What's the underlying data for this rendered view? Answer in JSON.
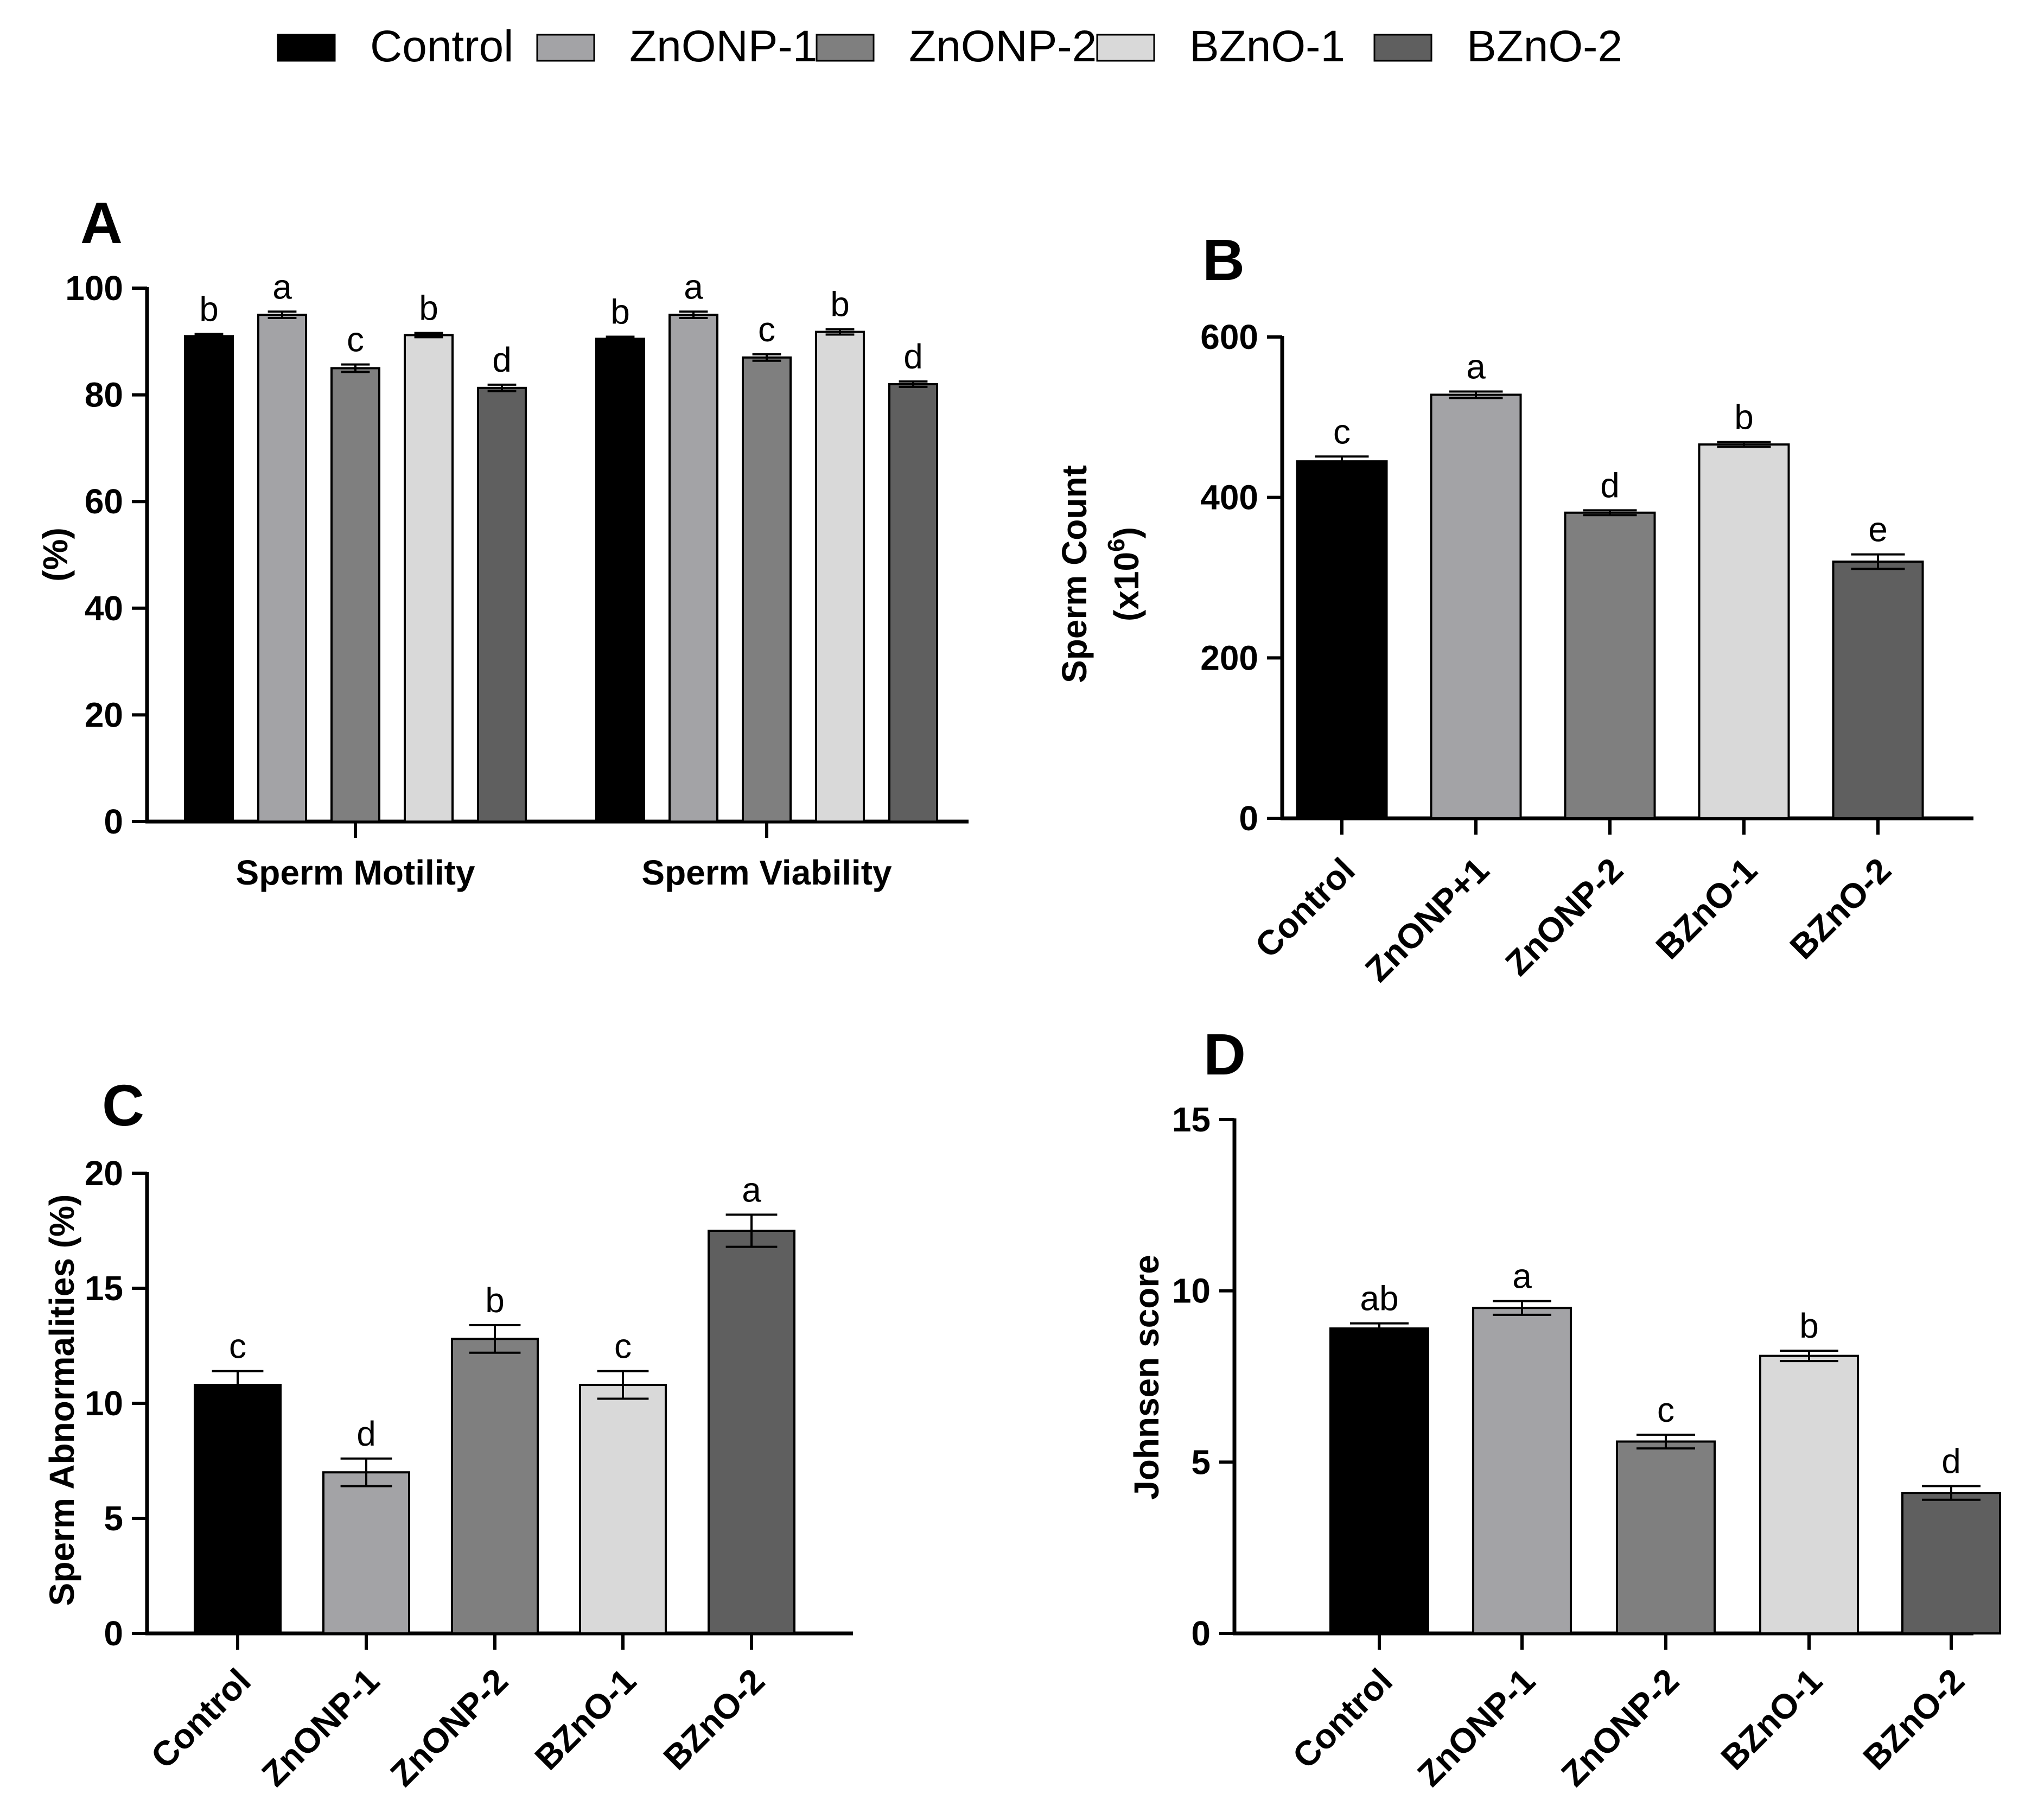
{
  "legend": {
    "items": [
      {
        "label": "Control",
        "color": "#000000"
      },
      {
        "label": "ZnONP-1",
        "color": "#a3a3a6"
      },
      {
        "label": "ZnONP-2",
        "color": "#7f7f7f"
      },
      {
        "label": "BZnO-1",
        "color": "#d9d9d9"
      },
      {
        "label": "BZnO-2",
        "color": "#5f5f5f"
      }
    ]
  },
  "chart_data": [
    {
      "panel": "A",
      "type": "bar",
      "title": "",
      "xlabel": "",
      "ylabel": "(%)",
      "ylim": [
        0,
        100
      ],
      "yticks": [
        0,
        20,
        40,
        60,
        80,
        100
      ],
      "groups": [
        "Sperm Motility",
        "Sperm Viability"
      ],
      "series": [
        {
          "name": "Control",
          "values": [
            91,
            90.5
          ],
          "errors": [
            0.4,
            0.4
          ],
          "labels": [
            "b",
            "b"
          ]
        },
        {
          "name": "ZnONP-1",
          "values": [
            95,
            95
          ],
          "errors": [
            0.6,
            0.6
          ],
          "labels": [
            "a",
            "a"
          ]
        },
        {
          "name": "ZnONP-2",
          "values": [
            85,
            87
          ],
          "errors": [
            0.7,
            0.6
          ],
          "labels": [
            "c",
            "c"
          ]
        },
        {
          "name": "BZnO-1",
          "values": [
            91.2,
            91.8
          ],
          "errors": [
            0.4,
            0.5
          ],
          "labels": [
            "b",
            "b"
          ]
        },
        {
          "name": "BZnO-2",
          "values": [
            81.3,
            82
          ],
          "errors": [
            0.6,
            0.5
          ],
          "labels": [
            "d",
            "d"
          ]
        }
      ]
    },
    {
      "panel": "B",
      "type": "bar",
      "title": "",
      "xlabel": "",
      "ylabel_line1": "Sperm Count",
      "ylabel_line2_base": "(x10",
      "ylabel_line2_sup": "6",
      "ylabel_line2_end": ")",
      "ylim": [
        0,
        600
      ],
      "yticks": [
        0,
        200,
        400,
        600
      ],
      "categories": [
        "Control",
        "ZnONP+1",
        "ZnONP-2",
        "BZnO-1",
        "BZnO-2"
      ],
      "values": [
        445,
        528,
        381,
        466,
        320
      ],
      "errors": [
        6,
        4,
        3,
        3,
        9
      ],
      "labels": [
        "c",
        "a",
        "d",
        "b",
        "e"
      ]
    },
    {
      "panel": "C",
      "type": "bar",
      "title": "",
      "xlabel": "",
      "ylabel": "Sperm Abnormalities (%)",
      "ylim": [
        0,
        20
      ],
      "yticks": [
        0,
        5,
        10,
        15,
        20
      ],
      "categories": [
        "Control",
        "ZnONP-1",
        "ZnONP-2",
        "BZnO-1",
        "BZnO-2"
      ],
      "values": [
        10.8,
        7.0,
        12.8,
        10.8,
        17.5
      ],
      "errors": [
        0.6,
        0.6,
        0.6,
        0.6,
        0.7
      ],
      "labels": [
        "c",
        "d",
        "b",
        "c",
        "a"
      ]
    },
    {
      "panel": "D",
      "type": "bar",
      "title": "",
      "xlabel": "",
      "ylabel": "Johnsen score",
      "ylim": [
        0,
        15
      ],
      "yticks": [
        0,
        5,
        10,
        15
      ],
      "categories": [
        "Control",
        "ZnONP-1",
        "ZnONP-2",
        "BZnO-1",
        "BZnO-2"
      ],
      "values": [
        8.9,
        9.5,
        5.6,
        8.1,
        4.1
      ],
      "errors": [
        0.15,
        0.2,
        0.2,
        0.15,
        0.2
      ],
      "labels": [
        "ab",
        "a",
        "c",
        "b",
        "d"
      ]
    }
  ]
}
